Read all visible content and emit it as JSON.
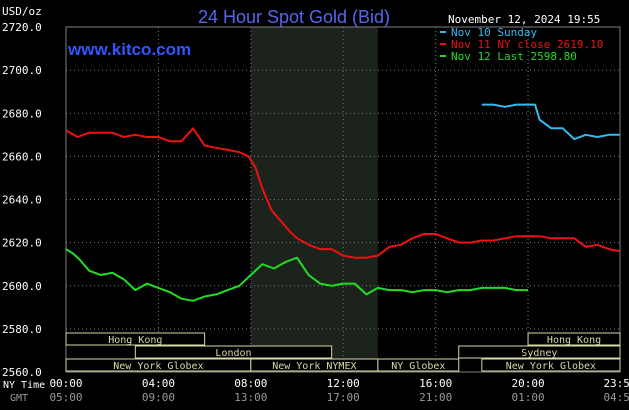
{
  "title": "24 Hour Spot Gold (Bid)",
  "unit_label": "USD/oz",
  "timestamp": "November 12, 2024 19:55",
  "watermark": "www.kitco.com",
  "legend": [
    {
      "text": "Nov 10 Sunday",
      "color": "#33bbee"
    },
    {
      "text": "Nov 11 NY close 2619.10",
      "color": "#ee1111"
    },
    {
      "text": "Nov 12 Last 2598.80",
      "color": "#22dd22"
    }
  ],
  "x_axis": {
    "row_label_top": "NY Time",
    "row_label_bottom": "GMT",
    "ny_ticks": [
      "00:00",
      "04:00",
      "08:00",
      "12:00",
      "16:00",
      "20:00",
      "23:59"
    ],
    "gmt_ticks": [
      "05:00",
      "09:00",
      "13:00",
      "17:00",
      "21:00",
      "01:00",
      "04:59"
    ]
  },
  "y_axis": {
    "ticks": [
      "2720.0",
      "2700.0",
      "2680.0",
      "2660.0",
      "2640.0",
      "2620.0",
      "2600.0",
      "2580.0",
      "2560.0"
    ]
  },
  "sessions": [
    {
      "label": "Hong Kong",
      "start": 0.0,
      "end": 6.0,
      "row": 0
    },
    {
      "label": "Hong Kong",
      "start": 20.0,
      "end": 23.98,
      "row": 0
    },
    {
      "label": "London",
      "start": 3.0,
      "end": 11.5,
      "row": 1
    },
    {
      "label": "Sydney",
      "start": 17.0,
      "end": 23.98,
      "row": 1
    },
    {
      "label": "New York Globex",
      "start": 0.0,
      "end": 8.0,
      "row": 2
    },
    {
      "label": "New York NYMEX",
      "start": 8.0,
      "end": 13.5,
      "row": 2
    },
    {
      "label": "NY Globex",
      "start": 13.5,
      "end": 17.0,
      "row": 2
    },
    {
      "label": "New York Globex",
      "start": 18.0,
      "end": 23.98,
      "row": 2
    }
  ],
  "chart_data": {
    "type": "line",
    "title": "24 Hour Spot Gold (Bid)",
    "ylabel": "USD/oz",
    "xlabel": "NY Time",
    "ylim": [
      2560,
      2720
    ],
    "xlim": [
      0,
      23.98
    ],
    "highlight_range": [
      8.0,
      13.5
    ],
    "series": [
      {
        "name": "Nov 10 Sunday",
        "color": "#33bbee",
        "x": [
          18.0,
          18.5,
          19.0,
          19.5,
          20.0,
          20.3,
          20.5,
          21.0,
          21.5,
          22.0,
          22.5,
          23.0,
          23.5,
          23.98
        ],
        "y": [
          2684,
          2684,
          2683,
          2684,
          2684,
          2684,
          2677,
          2673,
          2673,
          2668,
          2670,
          2669,
          2670,
          2670
        ]
      },
      {
        "name": "Nov 11 NY close 2619.10",
        "color": "#ee1111",
        "x": [
          0.0,
          0.5,
          1.0,
          1.5,
          2.0,
          2.5,
          3.0,
          3.5,
          4.0,
          4.5,
          5.0,
          5.5,
          6.0,
          6.5,
          7.0,
          7.5,
          7.9,
          8.2,
          8.5,
          8.9,
          9.3,
          9.7,
          10.0,
          10.5,
          11.0,
          11.5,
          12.0,
          12.5,
          13.0,
          13.5,
          14.0,
          14.5,
          15.0,
          15.5,
          16.0,
          16.5,
          17.0,
          17.5,
          18.0,
          18.5,
          19.0,
          19.5,
          20.0,
          20.5,
          21.0,
          21.5,
          22.0,
          22.5,
          23.0,
          23.5,
          23.98
        ],
        "y": [
          2672,
          2669,
          2671,
          2671,
          2671,
          2669,
          2670,
          2669,
          2669,
          2667,
          2667,
          2673,
          2665,
          2664,
          2663,
          2662,
          2660,
          2655,
          2645,
          2635,
          2630,
          2625,
          2622,
          2619,
          2617,
          2617,
          2614,
          2613,
          2613,
          2614,
          2618,
          2619,
          2622,
          2624,
          2624,
          2622,
          2620,
          2620,
          2621,
          2621,
          2622,
          2623,
          2623,
          2623,
          2622,
          2622,
          2622,
          2618,
          2619,
          2617,
          2616
        ]
      },
      {
        "name": "Nov 12 Last 2598.80",
        "color": "#22dd22",
        "x": [
          0.0,
          0.3,
          0.6,
          1.0,
          1.5,
          2.0,
          2.5,
          3.0,
          3.5,
          4.0,
          4.5,
          5.0,
          5.5,
          6.0,
          6.5,
          7.0,
          7.5,
          8.0,
          8.5,
          9.0,
          9.5,
          10.0,
          10.5,
          11.0,
          11.5,
          12.0,
          12.5,
          13.0,
          13.5,
          14.0,
          14.5,
          15.0,
          15.5,
          16.0,
          16.5,
          17.0,
          17.5,
          18.0,
          18.5,
          19.0,
          19.5,
          20.0
        ],
        "y": [
          2617,
          2615,
          2612,
          2607,
          2605,
          2606,
          2603,
          2598,
          2601,
          2599,
          2597,
          2594,
          2593,
          2595,
          2596,
          2598,
          2600,
          2605,
          2610,
          2608,
          2611,
          2613,
          2605,
          2601,
          2600,
          2601,
          2601,
          2596,
          2599,
          2598,
          2598,
          2597,
          2598,
          2598,
          2597,
          2598,
          2598,
          2599,
          2599,
          2599,
          2598,
          2598
        ]
      }
    ]
  }
}
